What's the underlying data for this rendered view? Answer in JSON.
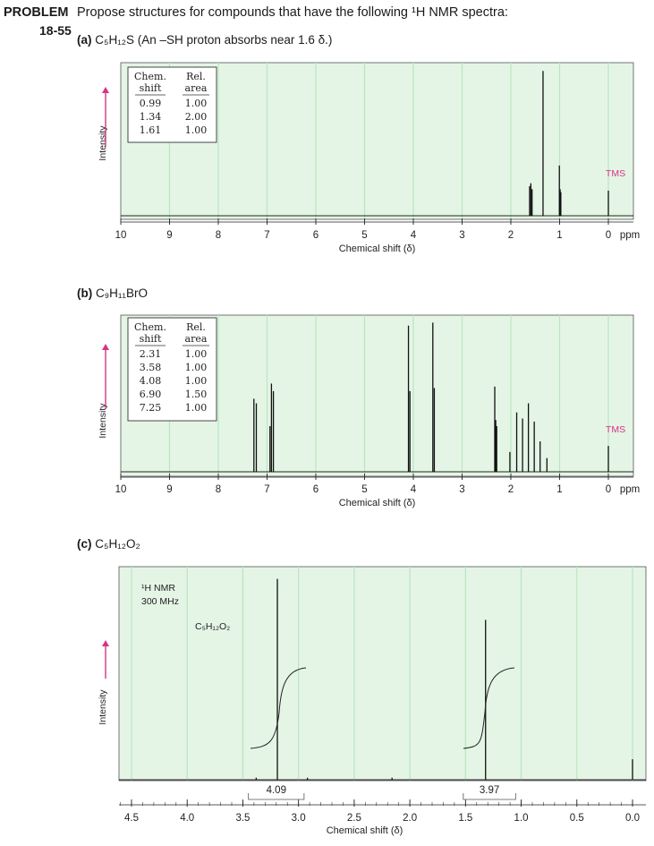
{
  "header": {
    "label": "PROBLEM",
    "number": "18-55",
    "text": "Propose structures for compounds that have the following ¹H NMR spectra:"
  },
  "parts": [
    {
      "letter": "(a)",
      "formula": "C₅H₁₂S",
      "note": "(An –SH proton absorbs near 1.6 δ.)"
    },
    {
      "letter": "(b)",
      "formula": "C₉H₁₁BrO",
      "note": ""
    },
    {
      "letter": "(c)",
      "formula": "C₅H₁₂O₂",
      "note": ""
    }
  ],
  "chart_data": [
    {
      "type": "line",
      "title": "(a) C5H12S",
      "xlabel": "Chemical shift (δ)",
      "ylabel": "Intensity",
      "unit": "ppm",
      "xlim": [
        10,
        0
      ],
      "xticks": [
        "10",
        "9",
        "8",
        "7",
        "6",
        "5",
        "4",
        "3",
        "2",
        "1",
        "0"
      ],
      "table": {
        "header": [
          "Chem. shift",
          "Rel. area"
        ],
        "rows": [
          [
            "0.99",
            "1.00"
          ],
          [
            "1.34",
            "2.00"
          ],
          [
            "1.61",
            "1.00"
          ]
        ]
      },
      "tms_label": "TMS",
      "peaks": [
        {
          "x": 1.615,
          "h": 0.2
        },
        {
          "x": 1.59,
          "h": 0.22
        },
        {
          "x": 1.565,
          "h": 0.18
        },
        {
          "x": 1.34,
          "h": 0.98
        },
        {
          "x": 1.005,
          "h": 0.34
        },
        {
          "x": 0.99,
          "h": 0.18
        },
        {
          "x": 0.975,
          "h": 0.16
        },
        {
          "x": 0.0,
          "h": 0.17
        }
      ]
    },
    {
      "type": "line",
      "title": "(b) C9H11BrO",
      "xlabel": "Chemical shift (δ)",
      "ylabel": "Intensity",
      "unit": "ppm",
      "xlim": [
        10,
        0
      ],
      "xticks": [
        "10",
        "9",
        "8",
        "7",
        "6",
        "5",
        "4",
        "3",
        "2",
        "1",
        "0"
      ],
      "table": {
        "header": [
          "Chem. shift",
          "Rel. area"
        ],
        "rows": [
          [
            "2.31",
            "1.00"
          ],
          [
            "3.58",
            "1.00"
          ],
          [
            "4.08",
            "1.00"
          ],
          [
            "6.90",
            "1.50"
          ],
          [
            "7.25",
            "1.00"
          ]
        ]
      },
      "tms_label": "TMS",
      "peaks": [
        {
          "x": 7.27,
          "h": 0.48
        },
        {
          "x": 7.22,
          "h": 0.45
        },
        {
          "x": 6.94,
          "h": 0.3
        },
        {
          "x": 6.91,
          "h": 0.58
        },
        {
          "x": 6.87,
          "h": 0.53
        },
        {
          "x": 4.1,
          "h": 0.96
        },
        {
          "x": 4.07,
          "h": 0.53
        },
        {
          "x": 3.6,
          "h": 0.98
        },
        {
          "x": 3.57,
          "h": 0.55
        },
        {
          "x": 2.33,
          "h": 0.56
        },
        {
          "x": 2.31,
          "h": 0.34
        },
        {
          "x": 2.29,
          "h": 0.3
        },
        {
          "x": 2.02,
          "h": 0.13
        },
        {
          "x": 1.88,
          "h": 0.39
        },
        {
          "x": 1.76,
          "h": 0.35
        },
        {
          "x": 1.64,
          "h": 0.45
        },
        {
          "x": 1.52,
          "h": 0.33
        },
        {
          "x": 1.4,
          "h": 0.2
        },
        {
          "x": 1.26,
          "h": 0.09
        },
        {
          "x": 0.0,
          "h": 0.17
        }
      ]
    },
    {
      "type": "line",
      "title": "(c) C5H12O2",
      "xlabel": "Chemical shift (δ)",
      "ylabel": "Intensity",
      "xlim": [
        4.6,
        -0.1
      ],
      "xticks": [
        "4.5",
        "4.0",
        "3.5",
        "3.0",
        "2.5",
        "2.0",
        "1.5",
        "1.0",
        "0.5",
        "0.0"
      ],
      "annotation_lines": [
        "¹H NMR",
        "300 MHz"
      ],
      "formula_label": "C₅H₁₂O₂",
      "integrals": [
        {
          "x_start": 3.45,
          "x_end": 2.95,
          "value": "4.09"
        },
        {
          "x_start": 1.52,
          "x_end": 1.05,
          "value": "3.97"
        }
      ],
      "peaks": [
        {
          "x": 3.19,
          "h": 0.98
        },
        {
          "x": 1.32,
          "h": 0.78
        },
        {
          "x": 0.0,
          "h": 0.1
        },
        {
          "x": 3.38,
          "h": 0.01
        },
        {
          "x": 2.92,
          "h": 0.01
        },
        {
          "x": 2.16,
          "h": 0.01
        }
      ]
    }
  ]
}
